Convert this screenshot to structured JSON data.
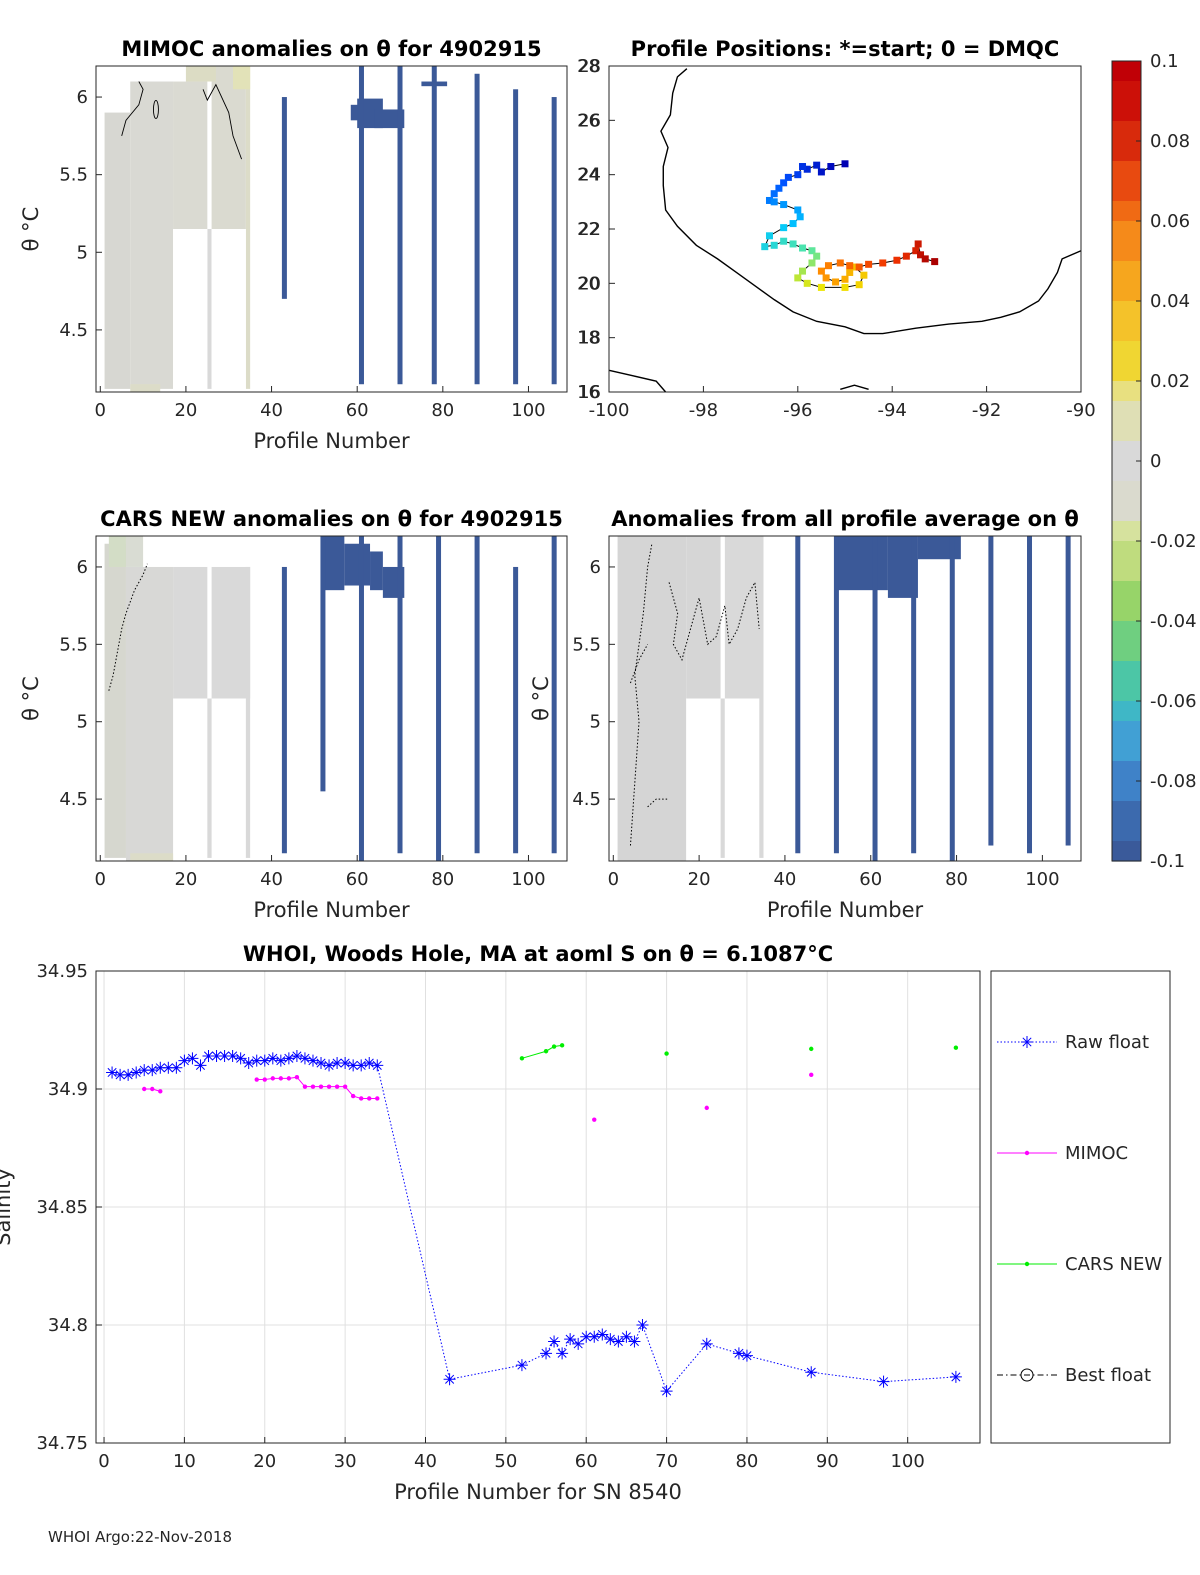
{
  "footer": "WHOI Argo:22-Nov-2018",
  "colors": {
    "bar": "#3b5998",
    "field": "#d9d9d9",
    "raw": "#0000ff",
    "mimoc": "#ff00ff",
    "cars": "#00ee00",
    "best": "#000000"
  },
  "chart_data": [
    {
      "id": "mimoc",
      "type": "heatmap",
      "title": "MIMOC anomalies on θ  for 4902915",
      "xlabel": "Profile Number",
      "ylabel": "θ °C",
      "xlim": [
        -1,
        109
      ],
      "ylim": [
        4.1,
        6.2
      ],
      "xticks": [
        0,
        20,
        40,
        60,
        80,
        100
      ],
      "xtick_labels": [
        "0",
        "20",
        "40",
        "60",
        "80",
        "100"
      ],
      "yticks": [
        4.5,
        5,
        5.5,
        6
      ],
      "ytick_labels": [
        "4.5",
        "5",
        "5.5",
        "6"
      ],
      "bars": [
        [
          43,
          4.7,
          6.0
        ],
        [
          61,
          4.15,
          6.2
        ],
        [
          70,
          4.15,
          6.2
        ],
        [
          78,
          4.15,
          6.2
        ],
        [
          88,
          4.15,
          6.15
        ],
        [
          97,
          4.15,
          6.05
        ],
        [
          106,
          4.15,
          6.0
        ]
      ],
      "blocks": [
        [
          58.5,
          64,
          5.85,
          5.95
        ],
        [
          60,
          66,
          5.8,
          5.99
        ],
        [
          64,
          71,
          5.8,
          5.92
        ],
        [
          75,
          81,
          6.07,
          6.1
        ]
      ]
    },
    {
      "id": "positions",
      "type": "scatter",
      "title": "Profile Positions: *=start; 0 = DMQC",
      "xlim": [
        -100,
        -90
      ],
      "ylim": [
        16,
        28
      ],
      "xticks": [
        -100,
        -98,
        -96,
        -94,
        -92,
        -90
      ],
      "xtick_labels": [
        "-100",
        "-98",
        "-96",
        "-94",
        "-92",
        "-90"
      ],
      "yticks": [
        16,
        18,
        20,
        22,
        24,
        26,
        28
      ],
      "ytick_labels": [
        "16",
        "18",
        "20",
        "22",
        "24",
        "26",
        "28"
      ],
      "track": [
        [
          -95.0,
          24.4
        ],
        [
          -95.3,
          24.3
        ],
        [
          -95.5,
          24.1
        ],
        [
          -95.6,
          24.35
        ],
        [
          -95.8,
          24.2
        ],
        [
          -95.9,
          24.3
        ],
        [
          -96.0,
          24.0
        ],
        [
          -96.2,
          23.9
        ],
        [
          -96.3,
          23.7
        ],
        [
          -96.4,
          23.5
        ],
        [
          -96.5,
          23.3
        ],
        [
          -96.6,
          23.05
        ],
        [
          -96.5,
          23.0
        ],
        [
          -96.3,
          22.9
        ],
        [
          -96.0,
          22.7
        ],
        [
          -95.95,
          22.45
        ],
        [
          -96.1,
          22.2
        ],
        [
          -96.3,
          22.05
        ],
        [
          -96.6,
          21.75
        ],
        [
          -96.7,
          21.35
        ],
        [
          -96.5,
          21.4
        ],
        [
          -96.3,
          21.55
        ],
        [
          -96.1,
          21.45
        ],
        [
          -95.9,
          21.3
        ],
        [
          -95.7,
          21.2
        ],
        [
          -95.6,
          21.0
        ],
        [
          -95.7,
          20.75
        ],
        [
          -95.9,
          20.45
        ],
        [
          -96.0,
          20.2
        ],
        [
          -95.8,
          20.0
        ],
        [
          -95.5,
          19.85
        ],
        [
          -95.0,
          19.85
        ],
        [
          -94.7,
          19.95
        ],
        [
          -94.6,
          20.3
        ],
        [
          -94.8,
          20.6
        ],
        [
          -94.9,
          20.4
        ],
        [
          -95.0,
          20.15
        ],
        [
          -95.2,
          20.05
        ],
        [
          -95.4,
          20.2
        ],
        [
          -95.5,
          20.45
        ],
        [
          -95.35,
          20.65
        ],
        [
          -95.1,
          20.75
        ],
        [
          -94.9,
          20.65
        ],
        [
          -94.7,
          20.6
        ],
        [
          -94.5,
          20.7
        ],
        [
          -94.2,
          20.75
        ],
        [
          -93.9,
          20.85
        ],
        [
          -93.7,
          21.0
        ],
        [
          -93.5,
          21.2
        ],
        [
          -93.45,
          21.45
        ],
        [
          -93.4,
          21.05
        ],
        [
          -93.3,
          20.9
        ],
        [
          -93.1,
          20.8
        ]
      ],
      "coast": [
        [
          [
            -98.35,
            27.9
          ],
          [
            -98.55,
            27.6
          ],
          [
            -98.65,
            27.0
          ],
          [
            -98.7,
            26.2
          ],
          [
            -98.9,
            25.6
          ],
          [
            -98.75,
            25.0
          ],
          [
            -98.85,
            24.3
          ],
          [
            -98.85,
            23.6
          ],
          [
            -98.8,
            22.7
          ],
          [
            -98.55,
            22.1
          ],
          [
            -98.15,
            21.4
          ],
          [
            -97.7,
            20.9
          ],
          [
            -97.3,
            20.4
          ],
          [
            -96.9,
            19.9
          ],
          [
            -96.5,
            19.4
          ],
          [
            -96.1,
            18.95
          ],
          [
            -95.6,
            18.6
          ],
          [
            -95.0,
            18.4
          ],
          [
            -94.6,
            18.15
          ],
          [
            -94.2,
            18.15
          ],
          [
            -93.5,
            18.35
          ],
          [
            -92.8,
            18.5
          ],
          [
            -92.1,
            18.6
          ],
          [
            -91.7,
            18.75
          ],
          [
            -91.3,
            18.95
          ],
          [
            -90.9,
            19.35
          ],
          [
            -90.7,
            19.8
          ],
          [
            -90.5,
            20.4
          ],
          [
            -90.4,
            20.9
          ],
          [
            -90.0,
            21.2
          ]
        ],
        [
          [
            -100,
            16.8
          ],
          [
            -99.5,
            16.6
          ],
          [
            -99.0,
            16.4
          ],
          [
            -98.8,
            16.0
          ]
        ],
        [
          [
            -95.1,
            16.1
          ],
          [
            -94.8,
            16.25
          ],
          [
            -94.5,
            16.1
          ]
        ]
      ]
    },
    {
      "id": "colorbar",
      "type": "heatmap",
      "range": [
        -0.1,
        0.1
      ],
      "ticks": [
        0.1,
        0.08,
        0.06,
        0.04,
        0.02,
        0,
        -0.02,
        -0.04,
        -0.06,
        -0.08,
        -0.1
      ],
      "tick_labels": [
        "0.1",
        "0.08",
        "0.06",
        "0.04",
        "0.02",
        "0",
        "-0.02",
        "-0.04",
        "-0.06",
        "-0.08",
        "-0.1"
      ]
    },
    {
      "id": "cars",
      "type": "heatmap",
      "title": "CARS NEW anomalies on θ for 4902915",
      "xlabel": "Profile Number",
      "ylabel": "θ °C",
      "xlim": [
        -1,
        109
      ],
      "ylim": [
        4.1,
        6.2
      ],
      "xticks": [
        0,
        20,
        40,
        60,
        80,
        100
      ],
      "xtick_labels": [
        "0",
        "20",
        "40",
        "60",
        "80",
        "100"
      ],
      "yticks": [
        4.5,
        5,
        5.5,
        6
      ],
      "ytick_labels": [
        "4.5",
        "5",
        "5.5",
        "6"
      ],
      "bars": [
        [
          43,
          4.15,
          6.0
        ],
        [
          52,
          4.55,
          6.2
        ],
        [
          61,
          4.1,
          6.2
        ],
        [
          70,
          4.15,
          6.2
        ],
        [
          79,
          4.1,
          6.2
        ],
        [
          88,
          4.15,
          6.2
        ],
        [
          97,
          4.15,
          6.0
        ],
        [
          106,
          4.15,
          6.2
        ]
      ],
      "blocks": [
        [
          52,
          57,
          5.85,
          6.2
        ],
        [
          57,
          63,
          5.88,
          6.15
        ],
        [
          63,
          66,
          5.85,
          6.1
        ],
        [
          66,
          71,
          5.8,
          6.0
        ]
      ]
    },
    {
      "id": "allavg",
      "type": "heatmap",
      "title": "Anomalies from all profile average on θ",
      "xlabel": "Profile Number",
      "ylabel": "θ °C",
      "xlim": [
        -1,
        109
      ],
      "ylim": [
        4.1,
        6.2
      ],
      "xticks": [
        0,
        20,
        40,
        60,
        80,
        100
      ],
      "xtick_labels": [
        "0",
        "20",
        "40",
        "60",
        "80",
        "100"
      ],
      "yticks": [
        4.5,
        5,
        5.5,
        6
      ],
      "ytick_labels": [
        "4.5",
        "5",
        "5.5",
        "6"
      ],
      "bars": [
        [
          43,
          4.15,
          6.2
        ],
        [
          52,
          4.15,
          6.2
        ],
        [
          61,
          4.1,
          6.2
        ],
        [
          70,
          4.15,
          6.2
        ],
        [
          79,
          4.1,
          6.2
        ],
        [
          88,
          4.2,
          6.2
        ],
        [
          97,
          4.15,
          6.2
        ],
        [
          106,
          4.2,
          6.2
        ]
      ],
      "blocks": [
        [
          52,
          64,
          5.85,
          6.2
        ],
        [
          64,
          71,
          5.8,
          6.2
        ],
        [
          71,
          81,
          6.05,
          6.2
        ]
      ]
    },
    {
      "id": "salinity",
      "type": "line",
      "title": "WHOI, Woods Hole, MA at aoml S on θ = 6.1087°C",
      "xlabel": "Profile Number for SN 8540",
      "ylabel": "Salinity",
      "xlim": [
        -1,
        109
      ],
      "ylim": [
        34.75,
        34.95
      ],
      "xticks": [
        0,
        10,
        20,
        30,
        40,
        50,
        60,
        70,
        80,
        90,
        100
      ],
      "xtick_labels": [
        "0",
        "10",
        "20",
        "30",
        "40",
        "50",
        "60",
        "70",
        "80",
        "90",
        "100"
      ],
      "yticks": [
        34.75,
        34.8,
        34.85,
        34.9,
        34.95
      ],
      "ytick_labels": [
        "34.75",
        "34.8",
        "34.85",
        "34.9",
        "34.95"
      ],
      "series": [
        {
          "name": "Raw float",
          "style": "dotted-star",
          "color": "#0000ff",
          "x": [
            1,
            2,
            3,
            4,
            5,
            6,
            7,
            8,
            9,
            10,
            11,
            12,
            13,
            14,
            15,
            16,
            17,
            18,
            19,
            20,
            21,
            22,
            23,
            24,
            25,
            26,
            27,
            28,
            29,
            30,
            31,
            32,
            33,
            34,
            43,
            52,
            55,
            56,
            57,
            58,
            59,
            60,
            61,
            62,
            63,
            64,
            65,
            66,
            67,
            70,
            75,
            79,
            80,
            88,
            97,
            106
          ],
          "y": [
            34.907,
            34.906,
            34.906,
            34.907,
            34.908,
            34.908,
            34.909,
            34.909,
            34.909,
            34.912,
            34.913,
            34.91,
            34.914,
            34.914,
            34.914,
            34.914,
            34.913,
            34.911,
            34.912,
            34.912,
            34.913,
            34.912,
            34.913,
            34.914,
            34.913,
            34.912,
            34.911,
            34.91,
            34.911,
            34.911,
            34.91,
            34.91,
            34.911,
            34.91,
            34.777,
            34.783,
            34.788,
            34.793,
            34.788,
            34.794,
            34.792,
            34.795,
            34.795,
            34.796,
            34.794,
            34.793,
            34.795,
            34.793,
            34.8,
            34.772,
            34.792,
            34.788,
            34.787,
            34.78,
            34.776,
            34.778
          ]
        },
        {
          "name": "MIMOC",
          "style": "line-dot",
          "color": "#ff00ff",
          "segments": [
            [
              [
                5,
                34.9
              ],
              [
                6,
                34.9
              ],
              [
                7,
                34.899
              ]
            ],
            [
              [
                19,
                34.904
              ],
              [
                20,
                34.904
              ],
              [
                21,
                34.9045
              ],
              [
                22,
                34.9045
              ],
              [
                23,
                34.9045
              ],
              [
                24,
                34.905
              ],
              [
                25,
                34.901
              ],
              [
                26,
                34.901
              ],
              [
                27,
                34.901
              ],
              [
                28,
                34.901
              ],
              [
                29,
                34.901
              ],
              [
                30,
                34.901
              ],
              [
                31,
                34.897
              ],
              [
                32,
                34.896
              ],
              [
                33,
                34.896
              ],
              [
                34,
                34.896
              ]
            ],
            [
              [
                61,
                34.887
              ]
            ],
            [
              [
                75,
                34.892
              ]
            ],
            [
              [
                88,
                34.906
              ]
            ]
          ]
        },
        {
          "name": "CARS NEW",
          "style": "line-dot",
          "color": "#00ee00",
          "segments": [
            [
              [
                52,
                34.913
              ],
              [
                55,
                34.916
              ],
              [
                56,
                34.918
              ],
              [
                57,
                34.9185
              ]
            ],
            [
              [
                70,
                34.915
              ]
            ],
            [
              [
                88,
                34.917
              ]
            ],
            [
              [
                106,
                34.9175
              ]
            ]
          ]
        },
        {
          "name": "Best float",
          "style": "dashdot-circle",
          "color": "#000000",
          "x": [],
          "y": []
        }
      ]
    }
  ]
}
